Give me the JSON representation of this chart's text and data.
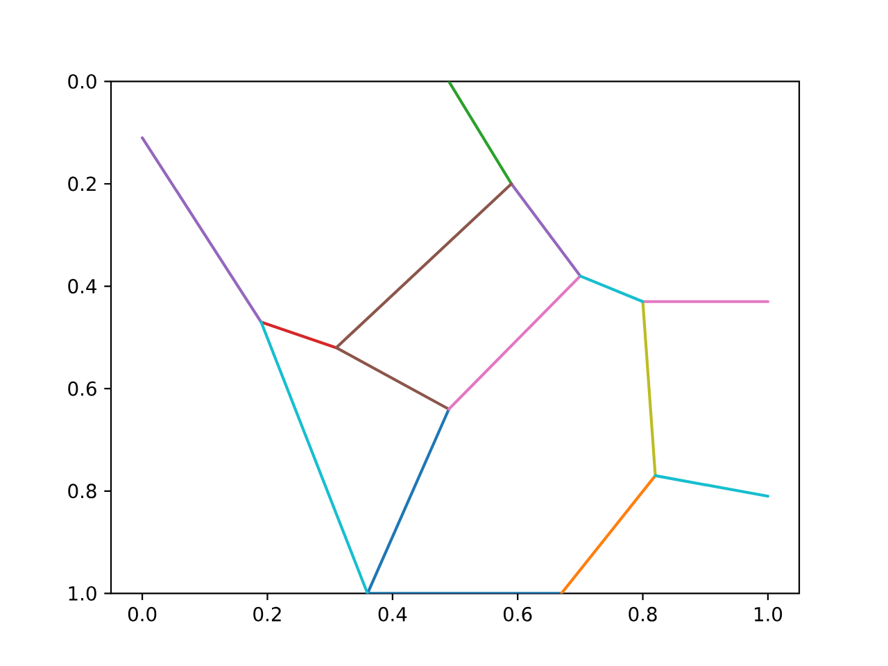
{
  "chart_data": {
    "type": "line",
    "xlim": [
      -0.05,
      1.05
    ],
    "ylim": [
      1,
      0
    ],
    "xticks": [
      {
        "value": 0,
        "label": "0.0"
      },
      0.2,
      0.4,
      0.6,
      0.8,
      {
        "value": 1,
        "label": "1.0"
      }
    ],
    "yticks": [
      {
        "value": 0,
        "label": "0.0"
      },
      0.2,
      0.4,
      0.6,
      0.8,
      {
        "value": 1,
        "label": "1.0"
      }
    ],
    "series": [
      {
        "color": "#1f77b4",
        "x": [
          0.36,
          0.49
        ],
        "values": [
          1.0,
          0.64
        ]
      },
      {
        "color": "#1f77b4",
        "x": [
          0.36,
          0.67
        ],
        "values": [
          1.0,
          1.0
        ]
      },
      {
        "color": "#ff7f0e",
        "x": [
          0.67,
          0.82
        ],
        "values": [
          1.0,
          0.77
        ]
      },
      {
        "color": "#2ca02c",
        "x": [
          0.49,
          0.59
        ],
        "values": [
          0.0,
          0.2
        ]
      },
      {
        "color": "#d62728",
        "x": [
          0.19,
          0.31
        ],
        "values": [
          0.47,
          0.52
        ]
      },
      {
        "color": "#9467bd",
        "x": [
          0.0,
          0.19
        ],
        "values": [
          0.11,
          0.47
        ]
      },
      {
        "color": "#9467bd",
        "x": [
          0.59,
          0.7
        ],
        "values": [
          0.2,
          0.38
        ]
      },
      {
        "color": "#8c564b",
        "x": [
          0.31,
          0.59
        ],
        "values": [
          0.52,
          0.2
        ]
      },
      {
        "color": "#8c564b",
        "x": [
          0.31,
          0.49
        ],
        "values": [
          0.52,
          0.64
        ]
      },
      {
        "color": "#e377c2",
        "x": [
          0.49,
          0.7
        ],
        "values": [
          0.64,
          0.38
        ]
      },
      {
        "color": "#e377c2",
        "x": [
          0.8,
          1.0
        ],
        "values": [
          0.43,
          0.43
        ]
      },
      {
        "color": "#bcbd22",
        "x": [
          0.8,
          0.82
        ],
        "values": [
          0.43,
          0.77
        ]
      },
      {
        "color": "#17becf",
        "x": [
          0.19,
          0.36
        ],
        "values": [
          0.47,
          1.0
        ]
      },
      {
        "color": "#17becf",
        "x": [
          0.7,
          0.8
        ],
        "values": [
          0.38,
          0.43
        ]
      },
      {
        "color": "#17becf",
        "x": [
          0.82,
          1.0
        ],
        "values": [
          0.77,
          0.81
        ]
      }
    ]
  }
}
